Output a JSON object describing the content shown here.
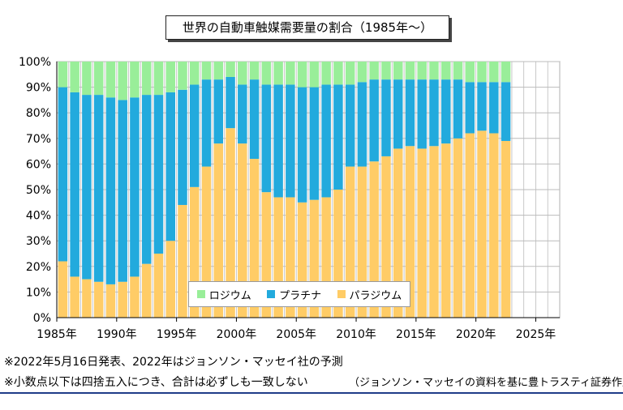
{
  "colors": {
    "rhodium": "#99ee99",
    "platinum": "#22aadd",
    "palladium": "#ffcc66",
    "grid": "#bbbbbb",
    "rule": "#1f3c88"
  },
  "chart_data": {
    "type": "bar",
    "stacked": true,
    "title": "世界の自動車触媒需要量の割合（1985年〜）",
    "x": [
      1985,
      1986,
      1987,
      1988,
      1989,
      1990,
      1991,
      1992,
      1993,
      1994,
      1995,
      1996,
      1997,
      1998,
      1999,
      2000,
      2001,
      2002,
      2003,
      2004,
      2005,
      2006,
      2007,
      2008,
      2009,
      2010,
      2011,
      2012,
      2013,
      2014,
      2015,
      2016,
      2017,
      2018,
      2019,
      2020,
      2021,
      2022
    ],
    "series": [
      {
        "name": "パラジウム",
        "color": "#ffcc66",
        "values": [
          22,
          16,
          15,
          14,
          13,
          14,
          16,
          21,
          25,
          30,
          44,
          51,
          59,
          68,
          74,
          68,
          62,
          49,
          47,
          47,
          45,
          46,
          47,
          50,
          59,
          59,
          61,
          63,
          66,
          67,
          66,
          67,
          68,
          70,
          72,
          73,
          72,
          69
        ]
      },
      {
        "name": "プラチナ",
        "color": "#22aadd",
        "values": [
          68,
          72,
          72,
          73,
          73,
          71,
          70,
          66,
          62,
          58,
          45,
          40,
          34,
          25,
          20,
          23,
          31,
          42,
          44,
          44,
          45,
          44,
          44,
          41,
          32,
          33,
          32,
          30,
          27,
          26,
          27,
          26,
          25,
          23,
          20,
          19,
          20,
          23
        ]
      },
      {
        "name": "ロジウム",
        "color": "#99ee99",
        "values": [
          10,
          12,
          13,
          13,
          14,
          15,
          14,
          13,
          13,
          12,
          11,
          9,
          7,
          7,
          6,
          9,
          7,
          9,
          9,
          9,
          10,
          10,
          9,
          9,
          9,
          8,
          7,
          7,
          7,
          7,
          7,
          7,
          7,
          7,
          8,
          8,
          8,
          8
        ]
      }
    ],
    "legend": [
      "ロジウム",
      "プラチナ",
      "パラジウム"
    ],
    "legend_placement": "lower-center",
    "xlim": [
      1985,
      2027
    ],
    "ylim": [
      0,
      100
    ],
    "yticks": [
      "0%",
      "10%",
      "20%",
      "30%",
      "40%",
      "50%",
      "60%",
      "70%",
      "80%",
      "90%",
      "100%"
    ],
    "xticks": [
      {
        "year": 1985,
        "label": "1985年"
      },
      {
        "year": 1990,
        "label": "1990年"
      },
      {
        "year": 1995,
        "label": "1995年"
      },
      {
        "year": 2000,
        "label": "2000年"
      },
      {
        "year": 2005,
        "label": "2005年"
      },
      {
        "year": 2010,
        "label": "2010年"
      },
      {
        "year": 2015,
        "label": "2015年"
      },
      {
        "year": 2020,
        "label": "2020年"
      },
      {
        "year": 2025,
        "label": "2025年"
      }
    ],
    "grid": true
  },
  "notes": {
    "note1": "※2022年5月16日発表、2022年はジョンソン・マッセイ社の予測",
    "note2": "※小数点以下は四捨五入につき、合計は必ずしも一致しない",
    "source": "（ジョンソン・マッセイの資料を基に豊トラスティ証券作成）"
  }
}
